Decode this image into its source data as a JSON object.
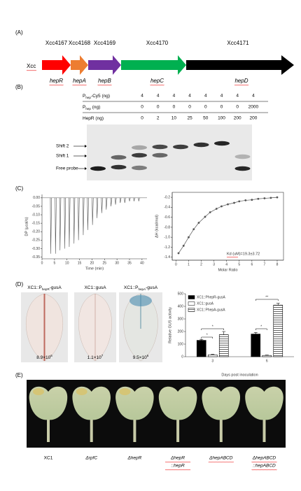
{
  "panel_labels": [
    "(A)",
    "(B)",
    "(C)",
    "(D)",
    "(E)"
  ],
  "panel_a": {
    "organism": "Xcc",
    "genes": [
      {
        "id": "Xcc4167",
        "name": "hepR",
        "color": "#ff0000"
      },
      {
        "id": "Xcc4168",
        "name": "hepA",
        "color": "#ed7d31"
      },
      {
        "id": "Xcc4169",
        "name": "hepB",
        "color": "#7030a0"
      },
      {
        "id": "Xcc4170",
        "name": "hepC",
        "color": "#00b050"
      },
      {
        "id": "Xcc4171",
        "name": "hepD",
        "color": "#000000"
      }
    ]
  },
  "panel_b": {
    "row_labels": [
      {
        "main": "P",
        "sub": "hep",
        "rest": "-Cy5 (ng)"
      },
      {
        "main": "P",
        "sub": "hep",
        "rest": " (ng)"
      },
      {
        "main": "HepR (ng)"
      }
    ],
    "rows": [
      [
        4,
        4,
        4,
        4,
        4,
        4,
        4,
        4
      ],
      [
        0,
        0,
        0,
        0,
        0,
        0,
        0,
        2000
      ],
      [
        0,
        2,
        10,
        25,
        50,
        100,
        200,
        200
      ]
    ],
    "band_labels": [
      "Shift 2",
      "Shift 1",
      "Free probe"
    ]
  },
  "panel_c": {
    "itc_raw": {
      "type": "line",
      "x_label": "Time (min)",
      "y_label": "DP (µcal/s)",
      "color": "#555555",
      "x": [
        3.5,
        5.4,
        7.2,
        9.1,
        10.9,
        12.8,
        14.6,
        16.5,
        18.3,
        20.2,
        22.0,
        23.9,
        25.7,
        27.6,
        29.4,
        31.3,
        33.1,
        35.0,
        36.8,
        38.7
      ],
      "values": [
        -0.33,
        -0.33,
        -0.31,
        -0.3,
        -0.29,
        -0.27,
        -0.25,
        -0.22,
        -0.19,
        -0.16,
        -0.12,
        -0.09,
        -0.07,
        -0.05,
        -0.04,
        -0.03,
        -0.03,
        -0.02,
        -0.02,
        -0.02
      ],
      "xlim": [
        0,
        42
      ],
      "ylim": [
        -0.36,
        0.02
      ],
      "xticks": [
        0,
        5,
        10,
        15,
        20,
        25,
        30,
        35,
        40
      ],
      "yticks": [
        {
          "value": 0,
          "label": "0.00"
        },
        -0.05,
        {
          "value": -0.1,
          "label": "-0.10"
        },
        -0.15,
        {
          "value": -0.2,
          "label": "-0.20"
        },
        -0.25,
        {
          "value": -0.3,
          "label": "-0.30"
        },
        -0.35
      ]
    },
    "itc_fit": {
      "type": "scatter",
      "x_label": "Molar Ratio",
      "y_label": "ΔH (kcal/mol)",
      "annotation": "Kd (uM)=19.3±3.72",
      "color": "#555555",
      "x": [
        0.2,
        0.6,
        1.0,
        1.4,
        1.8,
        2.3,
        2.7,
        3.2,
        3.6,
        4.1,
        4.6,
        5.0,
        5.5,
        6.0,
        6.5,
        7.0,
        7.5,
        8.0
      ],
      "values": [
        -1.32,
        -1.17,
        -1.0,
        -0.84,
        -0.71,
        -0.59,
        -0.5,
        -0.43,
        -0.38,
        -0.34,
        -0.31,
        -0.28,
        -0.26,
        -0.25,
        -0.23,
        -0.22,
        -0.21,
        -0.2
      ],
      "xlim": [
        -0.3,
        8.5
      ],
      "ylim": [
        -1.46,
        -0.1
      ],
      "xticks": [
        0,
        1,
        2,
        3,
        4,
        5,
        6,
        7,
        8
      ],
      "yticks": [
        -0.2,
        -0.4,
        -0.6,
        -0.8,
        {
          "value": -1,
          "label": "-1.0"
        },
        -1.2,
        -1.4
      ]
    }
  },
  "panel_d": {
    "leaves": [
      {
        "label": {
          "main": "XC1::P",
          "sub": "hepR",
          "rest": "-gusA"
        },
        "count": {
          "base": "8.9×10",
          "exponent": "6"
        }
      },
      {
        "label": {
          "main": "XC1::gusA"
        },
        "count": {
          "base": "1.1×10",
          "exponent": "7"
        }
      },
      {
        "label": {
          "main": "XC1::P",
          "sub": "hepA",
          "rest": "-gusA"
        },
        "count": {
          "base": "9.5×10",
          "exponent": "6"
        }
      }
    ],
    "chart": {
      "type": "bar",
      "x_label": "Days post inoculation",
      "y_label": "Relative GUS activity",
      "categories": [
        "3",
        "6"
      ],
      "series": [
        {
          "name": "XC1::PhepR-gusA",
          "color": "#000000",
          "values": [
            130,
            180
          ],
          "errors": [
            8,
            12
          ]
        },
        {
          "name": "XC1::gusA",
          "color": "#ffffff",
          "values": [
            15,
            10
          ],
          "errors": [
            4,
            3
          ]
        },
        {
          "name": "XC1::PhepA-gusA",
          "color": "#ffffff",
          "pattern": "hatch",
          "values": [
            175,
            410
          ],
          "errors": [
            25,
            15
          ]
        }
      ],
      "significance": [
        "*",
        "*",
        "*",
        "**"
      ],
      "ylim": [
        0,
        500
      ],
      "yticks": [
        0,
        100,
        200,
        300,
        400,
        500
      ]
    }
  },
  "panel_e": {
    "strains": [
      {
        "lines": [
          "XC1"
        ]
      },
      {
        "lines": [
          "ΔrpfC"
        ]
      },
      {
        "lines": [
          "ΔhepR"
        ]
      },
      {
        "lines": [
          "ΔhepR",
          "::hepR"
        ]
      },
      {
        "lines": [
          "ΔhepABCD"
        ]
      },
      {
        "lines": [
          "ΔhepABCD",
          "::hepABCD"
        ]
      }
    ]
  }
}
